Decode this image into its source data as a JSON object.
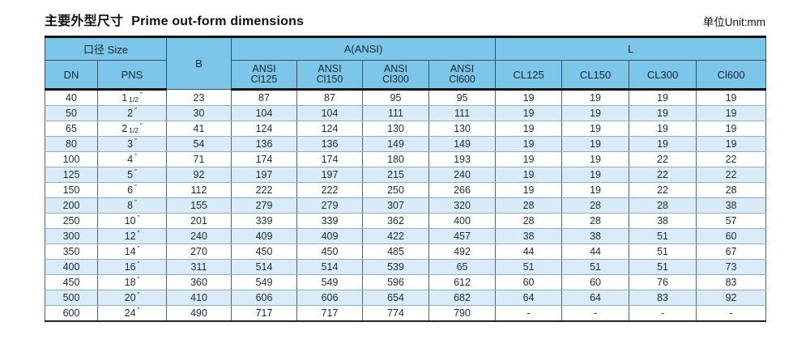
{
  "page": {
    "title_zh": "主要外型尺寸",
    "title_en": "Prime out-form dimensions",
    "unit_label": "单位Unit:mm"
  },
  "colors": {
    "header_bg": "#7cc6e9",
    "stripe_bg": "#d9ebf8",
    "border_heavy": "#111111",
    "grid_vertical": "#55656f",
    "grid_horizontal": "#95aebf",
    "text": "#1e2a33"
  },
  "table": {
    "group_headers": {
      "size": "口径 Size",
      "b": "B",
      "a": "A(ANSI)",
      "l": "L"
    },
    "sub_headers": {
      "dn": "DN",
      "pns": "PNS",
      "a_cols": [
        [
          "ANSI",
          "Cl125"
        ],
        [
          "ANSI",
          "Cl150"
        ],
        [
          "ANSI",
          "Cl300"
        ],
        [
          "ANSI",
          "Cl600"
        ]
      ],
      "l_cols": [
        "CL125",
        "CL150",
        "CL300",
        "Cl600"
      ]
    },
    "inch_mark": "″",
    "rows": [
      {
        "dn": "40",
        "pns": "1",
        "pns_frac": "1/2",
        "b": "23",
        "a": [
          "87",
          "87",
          "95",
          "95"
        ],
        "l": [
          "19",
          "19",
          "19",
          "19"
        ]
      },
      {
        "dn": "50",
        "pns": "2",
        "pns_frac": "",
        "b": "30",
        "a": [
          "104",
          "104",
          "111",
          "111"
        ],
        "l": [
          "19",
          "19",
          "19",
          "19"
        ]
      },
      {
        "dn": "65",
        "pns": "2",
        "pns_frac": "1/2",
        "b": "41",
        "a": [
          "124",
          "124",
          "130",
          "130"
        ],
        "l": [
          "19",
          "19",
          "19",
          "19"
        ]
      },
      {
        "dn": "80",
        "pns": "3",
        "pns_frac": "",
        "b": "54",
        "a": [
          "136",
          "136",
          "149",
          "149"
        ],
        "l": [
          "19",
          "19",
          "19",
          "19"
        ]
      },
      {
        "dn": "100",
        "pns": "4",
        "pns_frac": "",
        "b": "71",
        "a": [
          "174",
          "174",
          "180",
          "193"
        ],
        "l": [
          "19",
          "19",
          "22",
          "22"
        ]
      },
      {
        "dn": "125",
        "pns": "5",
        "pns_frac": "",
        "b": "92",
        "a": [
          "197",
          "197",
          "215",
          "240"
        ],
        "l": [
          "19",
          "19",
          "22",
          "22"
        ]
      },
      {
        "dn": "150",
        "pns": "6",
        "pns_frac": "",
        "b": "112",
        "a": [
          "222",
          "222",
          "250",
          "266"
        ],
        "l": [
          "19",
          "19",
          "22",
          "28"
        ]
      },
      {
        "dn": "200",
        "pns": "8",
        "pns_frac": "",
        "b": "155",
        "a": [
          "279",
          "279",
          "307",
          "320"
        ],
        "l": [
          "28",
          "28",
          "28",
          "38"
        ]
      },
      {
        "dn": "250",
        "pns": "10",
        "pns_frac": "",
        "b": "201",
        "a": [
          "339",
          "339",
          "362",
          "400"
        ],
        "l": [
          "28",
          "28",
          "38",
          "57"
        ]
      },
      {
        "dn": "300",
        "pns": "12",
        "pns_frac": "",
        "b": "240",
        "a": [
          "409",
          "409",
          "422",
          "457"
        ],
        "l": [
          "38",
          "38",
          "51",
          "60"
        ]
      },
      {
        "dn": "350",
        "pns": "14",
        "pns_frac": "",
        "b": "270",
        "a": [
          "450",
          "450",
          "485",
          "492"
        ],
        "l": [
          "44",
          "44",
          "51",
          "67"
        ]
      },
      {
        "dn": "400",
        "pns": "16",
        "pns_frac": "",
        "b": "311",
        "a": [
          "514",
          "514",
          "539",
          "65"
        ],
        "l": [
          "51",
          "51",
          "51",
          "73"
        ]
      },
      {
        "dn": "450",
        "pns": "18",
        "pns_frac": "",
        "b": "360",
        "a": [
          "549",
          "549",
          "596",
          "612"
        ],
        "l": [
          "60",
          "60",
          "76",
          "83"
        ]
      },
      {
        "dn": "500",
        "pns": "20",
        "pns_frac": "",
        "b": "410",
        "a": [
          "606",
          "606",
          "654",
          "682"
        ],
        "l": [
          "64",
          "64",
          "83",
          "92"
        ]
      },
      {
        "dn": "600",
        "pns": "24",
        "pns_frac": "",
        "b": "490",
        "a": [
          "717",
          "717",
          "774",
          "790"
        ],
        "l": [
          "-",
          "-",
          "-",
          "-"
        ]
      }
    ]
  }
}
